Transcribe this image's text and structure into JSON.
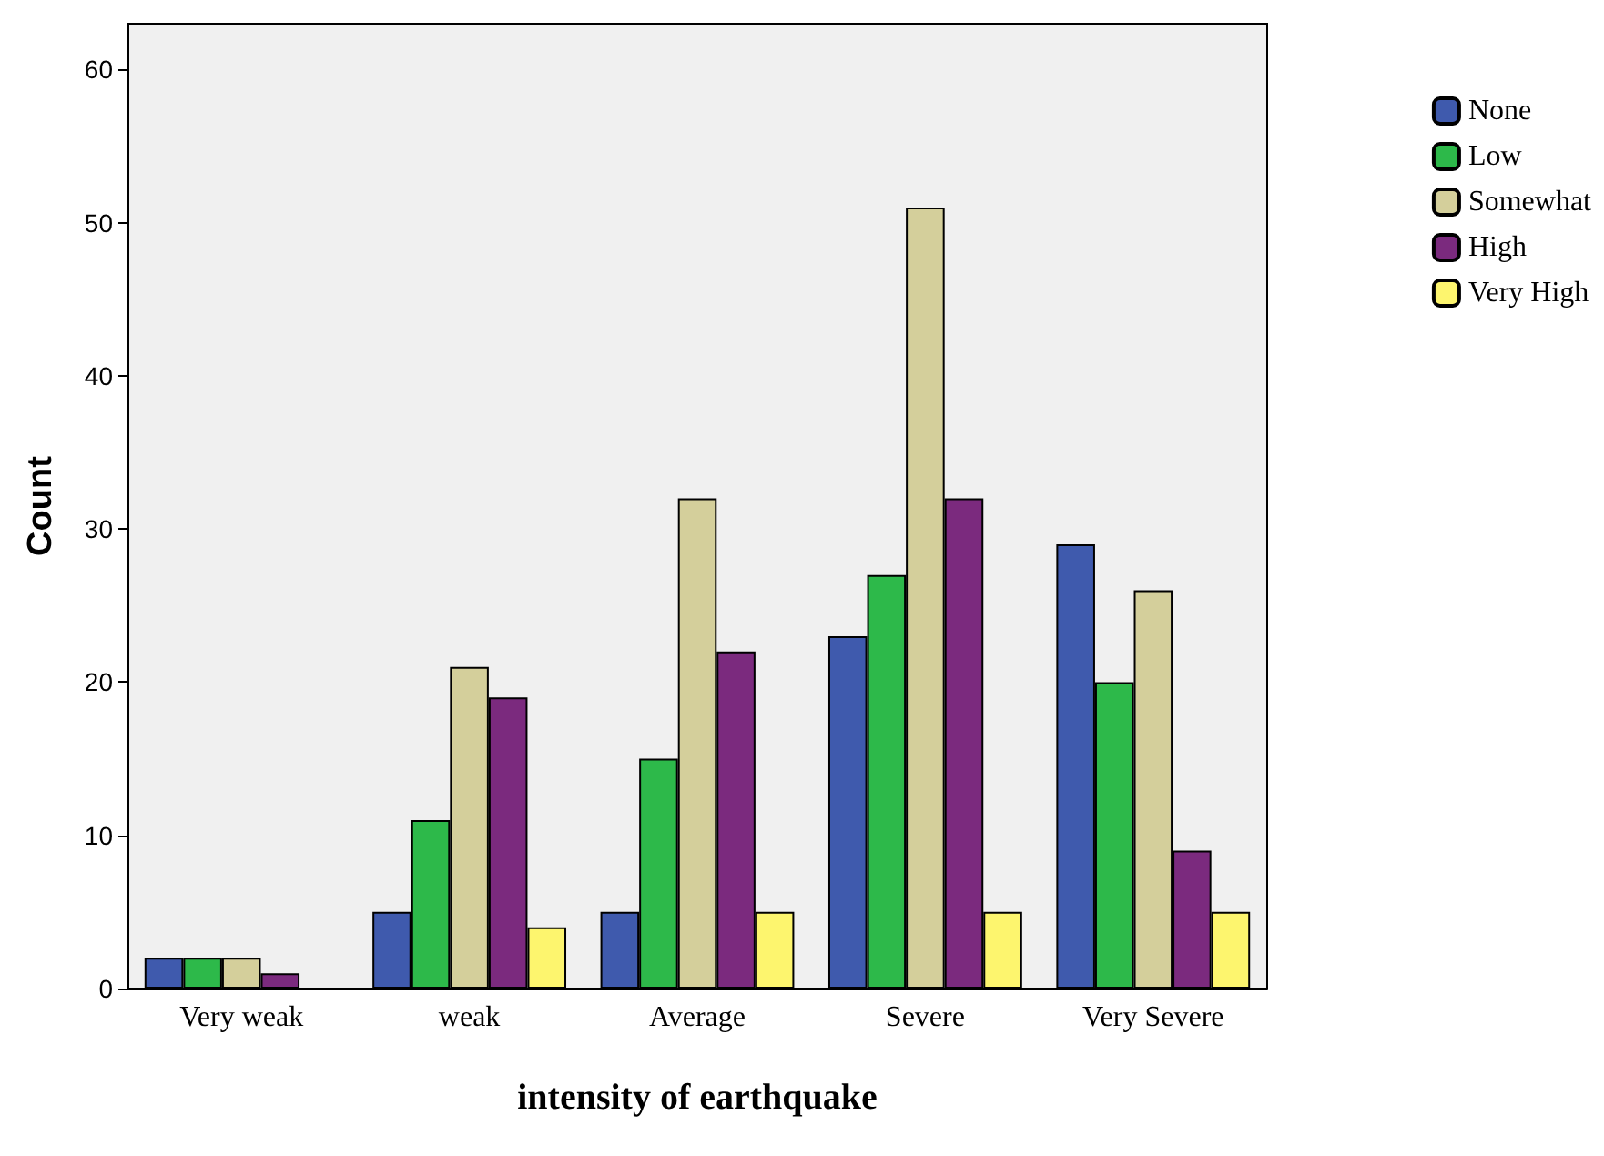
{
  "chart_data": {
    "type": "bar",
    "xlabel": "intensity of earthquake",
    "ylabel": "Count",
    "categories": [
      "Very weak",
      "weak",
      "Average",
      "Severe",
      "Very Severe"
    ],
    "series": [
      {
        "name": "None",
        "color": "#3f5aad",
        "values": [
          2,
          5,
          5,
          23,
          29
        ]
      },
      {
        "name": "Low",
        "color": "#2db94a",
        "values": [
          2,
          11,
          15,
          27,
          20
        ]
      },
      {
        "name": "Somewhat",
        "color": "#d4cf9b",
        "values": [
          2,
          21,
          32,
          51,
          26
        ]
      },
      {
        "name": "High",
        "color": "#7b2a7e",
        "values": [
          1,
          19,
          22,
          32,
          9
        ]
      },
      {
        "name": "Very High",
        "color": "#fdf56e",
        "values": [
          null,
          4,
          5,
          5,
          5
        ]
      }
    ],
    "ylim": [
      0,
      63
    ],
    "yticks": [
      0,
      10,
      20,
      30,
      40,
      50,
      60
    ],
    "grid": false,
    "legend": "top right"
  }
}
